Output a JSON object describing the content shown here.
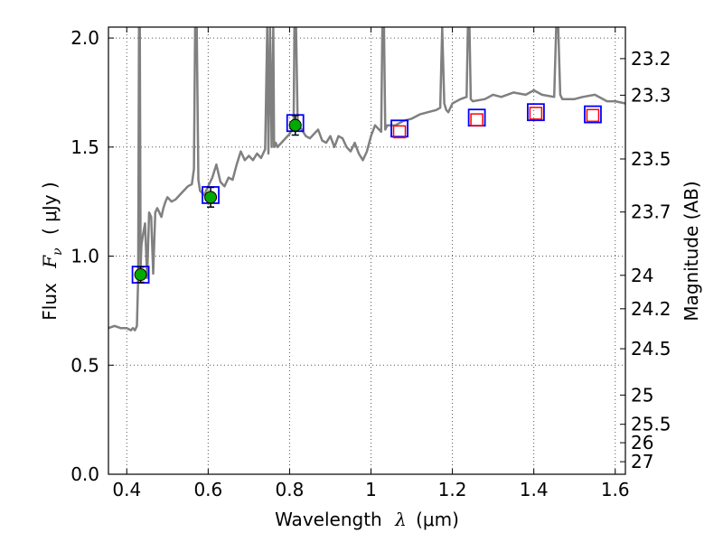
{
  "chart_data": {
    "type": "line",
    "xlabel": "Wavelength",
    "xlabel_symbol": "λ",
    "xlabel_unit": "(μm)",
    "ylabel": "Flux",
    "ylabel_symbol": "F",
    "ylabel_sub": "ν",
    "ylabel_unit": "( μJy )",
    "ylabel_right": "Magnitude (AB)",
    "xlim": [
      0.355,
      1.625
    ],
    "ylim": [
      0.0,
      2.05
    ],
    "grid": true,
    "x_ticks": [
      {
        "value": 0.4,
        "label": "0.4"
      },
      {
        "value": 0.6,
        "label": "0.6"
      },
      {
        "value": 0.8,
        "label": "0.8"
      },
      {
        "value": 1.0,
        "label": "1"
      },
      {
        "value": 1.2,
        "label": "1.2"
      },
      {
        "value": 1.4,
        "label": "1.4"
      },
      {
        "value": 1.6,
        "label": "1.6"
      }
    ],
    "y_ticks": [
      {
        "value": 0.0,
        "label": "0.0"
      },
      {
        "value": 0.5,
        "label": "0.5"
      },
      {
        "value": 1.0,
        "label": "1.0"
      },
      {
        "value": 1.5,
        "label": "1.5"
      },
      {
        "value": 2.0,
        "label": "2.0"
      }
    ],
    "magnitude_ticks": [
      {
        "value": 23.2,
        "label": "23.2"
      },
      {
        "value": 23.3,
        "label": "23.3"
      },
      {
        "value": 23.5,
        "label": "23.5"
      },
      {
        "value": 23.7,
        "label": "23.7"
      },
      {
        "value": 24.0,
        "label": "24"
      },
      {
        "value": 24.2,
        "label": "24.2"
      },
      {
        "value": 24.5,
        "label": "24.5"
      },
      {
        "value": 25.0,
        "label": "25"
      },
      {
        "value": 25.5,
        "label": "25.5"
      },
      {
        "value": 26.0,
        "label": "26"
      },
      {
        "value": 27.0,
        "label": "27"
      }
    ],
    "colors": {
      "spectrum": "#808080",
      "model_box": "#0000ff",
      "detection_fill": "#00aa00",
      "upper_limit_box": "#ff0000",
      "grid": "#555555"
    },
    "series": [
      {
        "kind": "spectrum",
        "x": [
          0.355,
          0.37,
          0.385,
          0.4,
          0.41,
          0.415,
          0.42,
          0.425,
          0.428,
          0.43,
          0.432,
          0.434,
          0.436,
          0.44,
          0.445,
          0.45,
          0.455,
          0.46,
          0.465,
          0.47,
          0.475,
          0.48,
          0.485,
          0.49,
          0.495,
          0.5,
          0.51,
          0.52,
          0.53,
          0.54,
          0.55,
          0.56,
          0.565,
          0.568,
          0.572,
          0.576,
          0.58,
          0.59,
          0.6,
          0.61,
          0.62,
          0.63,
          0.64,
          0.65,
          0.66,
          0.67,
          0.68,
          0.69,
          0.7,
          0.71,
          0.72,
          0.73,
          0.74,
          0.745,
          0.748,
          0.752,
          0.756,
          0.76,
          0.762,
          0.766,
          0.77,
          0.78,
          0.79,
          0.8,
          0.81,
          0.812,
          0.816,
          0.82,
          0.83,
          0.84,
          0.85,
          0.86,
          0.87,
          0.88,
          0.89,
          0.9,
          0.91,
          0.92,
          0.93,
          0.94,
          0.95,
          0.96,
          0.97,
          0.98,
          0.99,
          1.0,
          1.01,
          1.02,
          1.025,
          1.028,
          1.032,
          1.035,
          1.04,
          1.06,
          1.08,
          1.1,
          1.12,
          1.14,
          1.16,
          1.17,
          1.175,
          1.18,
          1.185,
          1.19,
          1.2,
          1.22,
          1.235,
          1.238,
          1.242,
          1.245,
          1.25,
          1.28,
          1.3,
          1.32,
          1.35,
          1.38,
          1.4,
          1.42,
          1.45,
          1.455,
          1.46,
          1.465,
          1.47,
          1.5,
          1.52,
          1.55,
          1.58,
          1.6,
          1.625
        ],
        "y": [
          0.67,
          0.68,
          0.67,
          0.67,
          0.66,
          0.67,
          0.66,
          0.68,
          0.9,
          2.05,
          2.05,
          0.95,
          1.05,
          1.1,
          1.15,
          0.9,
          1.2,
          1.18,
          0.92,
          1.2,
          1.22,
          1.2,
          1.18,
          1.22,
          1.25,
          1.27,
          1.25,
          1.26,
          1.28,
          1.3,
          1.32,
          1.33,
          1.4,
          2.05,
          2.05,
          1.35,
          1.3,
          1.28,
          1.32,
          1.36,
          1.42,
          1.34,
          1.32,
          1.36,
          1.35,
          1.42,
          1.48,
          1.44,
          1.46,
          1.44,
          1.47,
          1.45,
          1.49,
          2.05,
          1.47,
          2.05,
          1.5,
          2.05,
          1.5,
          1.52,
          1.5,
          1.52,
          1.54,
          1.56,
          1.6,
          2.05,
          2.05,
          1.6,
          1.58,
          1.55,
          1.54,
          1.56,
          1.58,
          1.53,
          1.52,
          1.55,
          1.5,
          1.55,
          1.54,
          1.5,
          1.48,
          1.52,
          1.47,
          1.44,
          1.48,
          1.55,
          1.6,
          1.58,
          1.57,
          2.05,
          2.05,
          1.58,
          1.6,
          1.6,
          1.62,
          1.63,
          1.65,
          1.66,
          1.67,
          1.68,
          2.05,
          1.7,
          1.67,
          1.66,
          1.7,
          1.72,
          1.73,
          2.05,
          2.05,
          1.72,
          1.71,
          1.72,
          1.74,
          1.73,
          1.75,
          1.74,
          1.76,
          1.74,
          1.73,
          2.05,
          2.05,
          1.74,
          1.72,
          1.72,
          1.73,
          1.74,
          1.71,
          1.71,
          1.7
        ]
      },
      {
        "kind": "photometry",
        "points": [
          {
            "x": 0.434,
            "model": 0.915,
            "obs": 0.915,
            "err": 0.035,
            "detected": true
          },
          {
            "x": 0.606,
            "model": 1.28,
            "obs": 1.27,
            "err": 0.045,
            "detected": true
          },
          {
            "x": 0.814,
            "model": 1.61,
            "obs": 1.6,
            "err": 0.045,
            "detected": true
          },
          {
            "x": 1.07,
            "model": 1.585,
            "obs": 1.57,
            "err": 0.0,
            "detected": false
          },
          {
            "x": 1.26,
            "model": 1.635,
            "obs": 1.625,
            "err": 0.0,
            "detected": false
          },
          {
            "x": 1.405,
            "model": 1.66,
            "obs": 1.655,
            "err": 0.0,
            "detected": false
          },
          {
            "x": 1.545,
            "model": 1.65,
            "obs": 1.645,
            "err": 0.0,
            "detected": false
          }
        ]
      }
    ]
  }
}
